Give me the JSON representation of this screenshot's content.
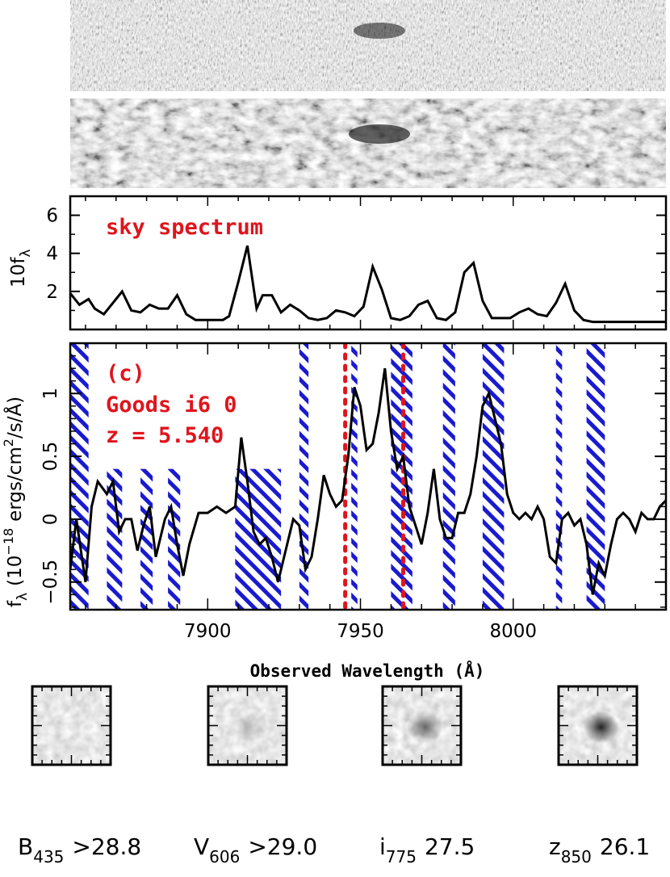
{
  "chart_data": [
    {
      "type": "image",
      "name": "2D spectrum (raw)",
      "description_visible": ""
    },
    {
      "type": "image",
      "name": "2D spectrum (smoothed)"
    },
    {
      "type": "line",
      "title": "sky spectrum",
      "ylabel": "10f",
      "ylabel_sub": "λ",
      "xlim": [
        7855,
        8050
      ],
      "ylim": [
        0,
        7
      ],
      "yticks": [
        2,
        4,
        6
      ],
      "x": [
        7855,
        7858,
        7861,
        7863,
        7866,
        7869,
        7872,
        7875,
        7878,
        7881,
        7884,
        7887,
        7890,
        7893,
        7896,
        7899,
        7902,
        7905,
        7907,
        7910,
        7913,
        7916,
        7918,
        7921,
        7924,
        7927,
        7930,
        7933,
        7936,
        7939,
        7942,
        7945,
        7948,
        7951,
        7954,
        7957,
        7960,
        7963,
        7966,
        7969,
        7972,
        7975,
        7978,
        7981,
        7984,
        7987,
        7990,
        7993,
        7996,
        7999,
        8002,
        8005,
        8008,
        8011,
        8014,
        8017,
        8020,
        8023,
        8026,
        8029,
        8032,
        8035,
        8038,
        8041,
        8044,
        8047,
        8050
      ],
      "y": [
        1.9,
        1.3,
        1.6,
        1.1,
        0.8,
        1.4,
        2.0,
        1.0,
        0.9,
        1.3,
        1.1,
        1.1,
        1.8,
        0.8,
        0.5,
        0.5,
        0.5,
        0.5,
        0.7,
        2.5,
        4.4,
        1.1,
        1.8,
        1.8,
        0.9,
        1.3,
        1.0,
        0.6,
        0.5,
        0.6,
        1.0,
        0.9,
        0.7,
        1.2,
        3.3,
        2.1,
        0.6,
        0.5,
        0.7,
        1.3,
        1.5,
        0.6,
        0.5,
        0.9,
        3.0,
        3.5,
        1.5,
        0.6,
        0.6,
        0.6,
        0.9,
        1.1,
        0.8,
        0.7,
        1.4,
        2.4,
        1.0,
        0.5,
        0.4,
        0.4,
        0.4,
        0.4,
        0.4,
        0.4,
        0.4,
        0.4,
        0.4
      ]
    },
    {
      "type": "line",
      "xlabel": "Observed Wavelength (Å)",
      "ylabel_main": "f",
      "ylabel_sub": "λ",
      "ylabel_rest": "(10",
      "ylabel_exp": "−18",
      "ylabel_units": "ergs/cm",
      "ylabel_units_exp": "2",
      "ylabel_units_end": "/s/Å)",
      "xlim": [
        7855,
        8050
      ],
      "ylim": [
        -0.72,
        1.4
      ],
      "xticks": [
        7900,
        7950,
        8000
      ],
      "yticks": [
        -0.5,
        0,
        0.5,
        1
      ],
      "ytick_labels": [
        "−0.5",
        "0",
        "0.5",
        "1"
      ],
      "annotations": [
        "(c)",
        "Goods i6 0",
        "z = 5.540"
      ],
      "x": [
        7855,
        7857,
        7860,
        7862,
        7864,
        7867,
        7869,
        7871,
        7873,
        7875,
        7877,
        7879,
        7881,
        7883,
        7886,
        7888,
        7890,
        7892,
        7894,
        7897,
        7900,
        7903,
        7906,
        7909,
        7911,
        7913,
        7915,
        7917,
        7919,
        7921,
        7923,
        7926,
        7928,
        7930,
        7932,
        7934,
        7936,
        7938,
        7940,
        7942,
        7944,
        7946,
        7948,
        7950,
        7952,
        7954,
        7956,
        7958,
        7960,
        7962,
        7964,
        7966,
        7968,
        7970,
        7972,
        7974,
        7976,
        7978,
        7980,
        7982,
        7984,
        7986,
        7988,
        7990,
        7992,
        7994,
        7996,
        7998,
        8000,
        8002,
        8004,
        8006,
        8008,
        8010,
        8012,
        8014,
        8016,
        8018,
        8020,
        8022,
        8024,
        8026,
        8028,
        8030,
        8032,
        8034,
        8036,
        8038,
        8040,
        8042,
        8044,
        8046,
        8048,
        8050
      ],
      "y": [
        -0.4,
        0.0,
        -0.5,
        0.1,
        0.3,
        0.2,
        0.3,
        -0.1,
        0.0,
        0.0,
        -0.25,
        -0.05,
        0.1,
        -0.3,
        0.0,
        0.1,
        -0.2,
        -0.45,
        -0.2,
        0.05,
        0.05,
        0.1,
        0.05,
        0.1,
        0.65,
        0.3,
        -0.1,
        -0.2,
        -0.15,
        -0.3,
        -0.5,
        -0.2,
        0.0,
        -0.05,
        -0.4,
        -0.3,
        0.0,
        0.35,
        0.2,
        0.1,
        0.15,
        0.5,
        1.05,
        0.9,
        0.55,
        0.6,
        0.85,
        1.2,
        0.7,
        0.4,
        0.5,
        0.1,
        -0.05,
        -0.2,
        0.05,
        0.4,
        0.0,
        -0.15,
        -0.15,
        0.05,
        0.05,
        0.2,
        0.5,
        0.9,
        1.0,
        0.8,
        0.6,
        0.2,
        0.05,
        0.0,
        0.05,
        0.0,
        0.1,
        0.0,
        -0.3,
        -0.35,
        0.0,
        0.05,
        -0.05,
        0.0,
        -0.2,
        -0.6,
        -0.35,
        -0.45,
        -0.2,
        0.0,
        0.05,
        0.0,
        -0.1,
        0.05,
        0.0,
        0.0,
        0.1,
        0.15
      ],
      "hatched_regions": [
        {
          "x0": 7855,
          "x1": 7861,
          "top": 1.4
        },
        {
          "x0": 7867,
          "x1": 7872,
          "top": 0.4
        },
        {
          "x0": 7878,
          "x1": 7882,
          "top": 0.4
        },
        {
          "x0": 7887,
          "x1": 7891,
          "top": 0.4
        },
        {
          "x0": 7909,
          "x1": 7924,
          "top": 0.4
        },
        {
          "x0": 7930,
          "x1": 7933,
          "top": 1.4
        },
        {
          "x0": 7947,
          "x1": 7949,
          "top": 1.4
        },
        {
          "x0": 7960,
          "x1": 7967,
          "top": 1.4
        },
        {
          "x0": 7977,
          "x1": 7981,
          "top": 1.4
        },
        {
          "x0": 7990,
          "x1": 7997,
          "top": 1.4
        },
        {
          "x0": 8014,
          "x1": 8016,
          "top": 1.4
        },
        {
          "x0": 8024,
          "x1": 8030,
          "top": 1.4
        }
      ],
      "red_dotted_lines": [
        7945,
        7964
      ]
    }
  ],
  "stamps": [
    {
      "filter": "B",
      "sub": "435",
      "mag": ">28.8",
      "source_strength": 0.0
    },
    {
      "filter": "V",
      "sub": "606",
      "mag": ">29.0",
      "source_strength": 0.18
    },
    {
      "filter": "i",
      "sub": "775",
      "mag": "27.5",
      "source_strength": 0.55
    },
    {
      "filter": "z",
      "sub": "850",
      "mag": "26.1",
      "source_strength": 0.85
    }
  ],
  "colors": {
    "hatch": "#1a1ad0",
    "annotation": "#e0141c",
    "line": "#000000"
  }
}
